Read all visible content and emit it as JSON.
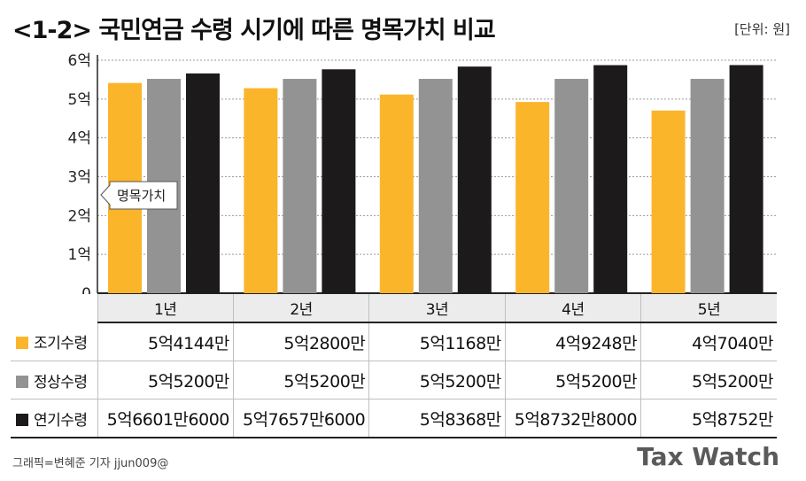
{
  "header": {
    "title": "<1-2> 국민연금 수령 시기에 따른 명목가치 비교",
    "unit": "[단위: 원]"
  },
  "footer": {
    "credit": "그래픽=변혜준 기자 jjun009@",
    "logo": "Tax Watch"
  },
  "colors": {
    "early": "#FBB52B",
    "normal": "#939393",
    "late": "#1c1a1b",
    "grid": "#9a9a9a",
    "header_bg": "#ececec"
  },
  "chart_data": {
    "type": "bar",
    "title": "<1-2> 국민연금 수령 시기에 따른 명목가치 비교",
    "unit": "[단위: 원]",
    "categories": [
      "1년",
      "2년",
      "3년",
      "4년",
      "5년"
    ],
    "yticks": [
      "0",
      "1억",
      "2억",
      "3억",
      "4억",
      "5억",
      "6억"
    ],
    "ylim": [
      0,
      600000000
    ],
    "grid": true,
    "annotation": "명목가치",
    "series": [
      {
        "name": "조기수령",
        "values": [
          541440000,
          528000000,
          511680000,
          492480000,
          470400000
        ],
        "labels": [
          "5억4144만",
          "5억2800만",
          "5억1168만",
          "4억9248만",
          "4억7040만"
        ]
      },
      {
        "name": "정상수령",
        "values": [
          552000000,
          552000000,
          552000000,
          552000000,
          552000000
        ],
        "labels": [
          "5억5200만",
          "5억5200만",
          "5억5200만",
          "5억5200만",
          "5억5200만"
        ]
      },
      {
        "name": "연기수령",
        "values": [
          566016000,
          576576000,
          583680000,
          587328000,
          587520000
        ],
        "labels": [
          "5억6601만6000",
          "5억7657만6000",
          "5억8368만",
          "5억8732만8000",
          "5억8752만"
        ]
      }
    ]
  }
}
